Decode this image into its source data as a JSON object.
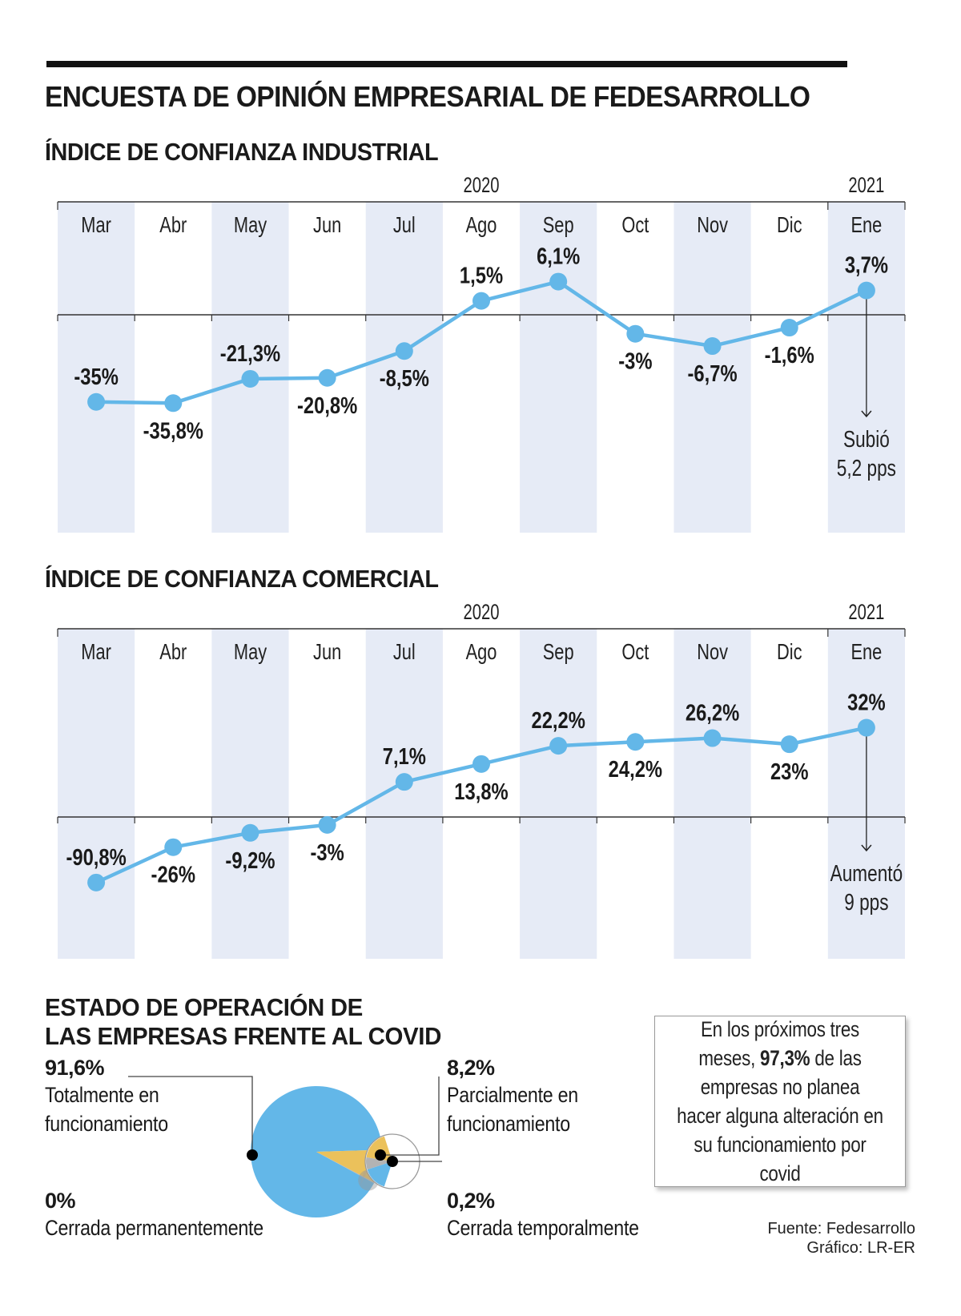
{
  "header": {
    "title": "ENCUESTA DE OPINIÓN EMPRESARIAL DE FEDESARROLLO"
  },
  "colors": {
    "line": "#63b7e8",
    "band": "#e6ebf6",
    "axis": "#333333",
    "pie_main": "#63b7e8",
    "pie_partial": "#ebc15b",
    "pie_temp": "#b3b3b3"
  },
  "chart_data": [
    {
      "type": "line",
      "title": "ÍNDICE DE CONFIANZA INDUSTRIAL",
      "year_labels": [
        {
          "label": "2020",
          "anchor_month": "Ago"
        },
        {
          "label": "2021",
          "anchor_month": "Ene"
        }
      ],
      "categories": [
        "Mar",
        "Abr",
        "May",
        "Jun",
        "Jul",
        "Ago",
        "Sep",
        "Oct",
        "Nov",
        "Dic",
        "Ene"
      ],
      "series": [
        {
          "name": "Índice de confianza industrial",
          "values": [
            -35,
            -35.8,
            -21.3,
            -20.8,
            -8.5,
            1.5,
            6.1,
            -3,
            -6.7,
            -1.6,
            3.7
          ]
        }
      ],
      "data_labels": [
        "-35%",
        "-35,8%",
        "-21,3%",
        "-20,8%",
        "-8,5%",
        "1,5%",
        "6,1%",
        "-3%",
        "-6,7%",
        "-1,6%",
        "3,7%"
      ],
      "label_side": [
        "above",
        "below",
        "above",
        "below",
        "below",
        "above",
        "above",
        "below",
        "below",
        "below",
        "above"
      ],
      "annotation": {
        "month": "Ene",
        "lines": [
          "Subió",
          "5,2 pps"
        ]
      },
      "xlabel": "",
      "ylabel": "",
      "grid": false,
      "zero_line": true
    },
    {
      "type": "line",
      "title": "ÍNDICE DE CONFIANZA COMERCIAL",
      "year_labels": [
        {
          "label": "2020",
          "anchor_month": "Ago"
        },
        {
          "label": "2021",
          "anchor_month": "Ene"
        }
      ],
      "categories": [
        "Mar",
        "Abr",
        "May",
        "Jun",
        "Jul",
        "Ago",
        "Sep",
        "Oct",
        "Nov",
        "Dic",
        "Ene"
      ],
      "series": [
        {
          "name": "Índice de confianza comercial",
          "values": [
            -90.8,
            -26,
            -9.2,
            -3,
            7.1,
            13.8,
            22.2,
            24.2,
            26.2,
            23,
            32
          ]
        }
      ],
      "data_labels": [
        "-90,8%",
        "-26%",
        "-9,2%",
        "-3%",
        "7,1%",
        "13,8%",
        "22,2%",
        "24,2%",
        "26,2%",
        "23%",
        "32%"
      ],
      "label_side": [
        "above",
        "below",
        "below",
        "below",
        "above",
        "below",
        "above",
        "below",
        "above",
        "below",
        "above"
      ],
      "annotation": {
        "month": "Ene",
        "lines": [
          "Aumentó",
          "9 pps"
        ]
      },
      "xlabel": "",
      "ylabel": "",
      "grid": false,
      "zero_line": true
    },
    {
      "type": "pie",
      "title": "ESTADO DE OPERACIÓN DE LAS EMPRESAS FRENTE AL COVID",
      "title_lines": [
        "ESTADO DE OPERACIÓN DE",
        "LAS EMPRESAS FRENTE AL COVID"
      ],
      "slices": [
        {
          "label": "Totalmente en funcionamiento",
          "label_lines": [
            "Totalmente en",
            "funcionamiento"
          ],
          "value": 91.6,
          "value_label": "91,6%",
          "color_key": "pie_main"
        },
        {
          "label": "Parcialmente en funcionamiento",
          "label_lines": [
            "Parcialmente en",
            "funcionamiento"
          ],
          "value": 8.2,
          "value_label": "8,2%",
          "color_key": "pie_partial"
        },
        {
          "label": "Cerrada temporalmente",
          "label_lines": [
            "Cerrada temporalmente"
          ],
          "value": 0.2,
          "value_label": "0,2%",
          "color_key": "pie_temp"
        },
        {
          "label": "Cerrada permanentemente",
          "label_lines": [
            "Cerrada permanentemente"
          ],
          "value": 0,
          "value_label": "0%",
          "color_key": "pie_main"
        }
      ]
    }
  ],
  "note": {
    "before": "En los próximos tres meses, ",
    "highlight": "97,3%",
    "after": " de las empresas no planea hacer alguna alteración en su funcionamiento por covid"
  },
  "credits": {
    "source": "Fuente: Fedesarrollo",
    "graphic": "Gráfico: LR-ER"
  }
}
